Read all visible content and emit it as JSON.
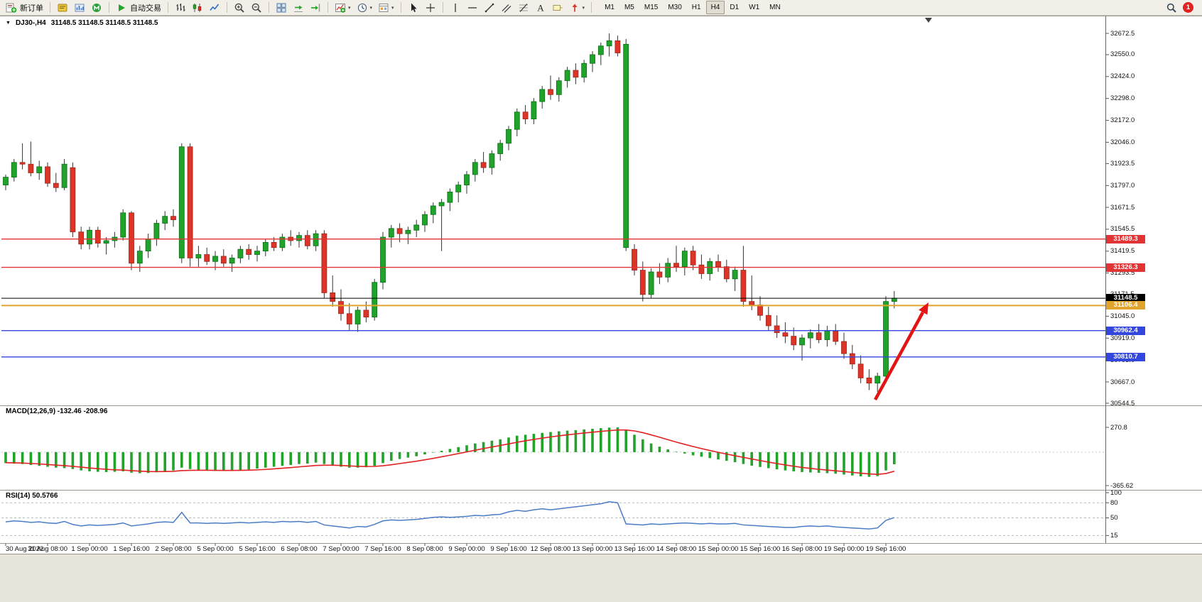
{
  "toolbar": {
    "new_order": "新订单",
    "auto_trading": "自动交易",
    "icon_groups": [
      [
        "new-order"
      ],
      [
        "metaeditor",
        "strategy-tester",
        "mql"
      ],
      [
        "autotrading"
      ],
      [
        "bar-chart",
        "candlestick-chart",
        "line-chart"
      ],
      [
        "zoom-in",
        "zoom-out"
      ],
      [
        "tile-windows",
        "auto-scroll",
        "chart-shift"
      ],
      [
        "indicators",
        "periods",
        "templates"
      ],
      [
        "cursor",
        "crosshair"
      ],
      [
        "vertical-line",
        "horizontal-line",
        "trendline",
        "channel",
        "fibonacci",
        "text",
        "text-label",
        "arrows"
      ]
    ],
    "timeframes": [
      "M1",
      "M5",
      "M15",
      "M30",
      "H1",
      "H4",
      "D1",
      "W1",
      "MN"
    ],
    "active_timeframe": "H4",
    "notification_count": "1"
  },
  "chart": {
    "symbol_title": "DJ30-,H4",
    "ohlc_title": "31148.5 31148.5 31148.5 31148.5",
    "macd_label": "MACD(12,26,9) -132.46 -208.96",
    "rsi_label": "RSI(14) 50.5766",
    "y_axis_labels": [
      "32672.5",
      "32550.0",
      "32424.0",
      "32298.0",
      "32172.0",
      "32046.0",
      "31923.5",
      "31797.0",
      "31671.5",
      "31545.5",
      "31419.5",
      "31293.5",
      "31171.5",
      "31045.0",
      "30919.0",
      "30793.0",
      "30667.0",
      "30544.5"
    ],
    "macd_axis_labels": [
      "270.8",
      "-365.62"
    ],
    "rsi_axis_labels": [
      "100",
      "80",
      "50",
      "15"
    ],
    "time_axis_labels": [
      "30 Aug 2022",
      "31 Aug 08:00",
      "1 Sep 00:00",
      "1 Sep 16:00",
      "2 Sep 08:00",
      "5 Sep 00:00",
      "5 Sep 16:00",
      "6 Sep 08:00",
      "7 Sep 00:00",
      "7 Sep 16:00",
      "8 Sep 08:00",
      "9 Sep 00:00",
      "9 Sep 16:00",
      "12 Sep 08:00",
      "13 Sep 00:00",
      "13 Sep 16:00",
      "14 Sep 08:00",
      "15 Sep 00:00",
      "15 Sep 16:00",
      "16 Sep 08:00",
      "19 Sep 00:00",
      "19 Sep 16:00"
    ],
    "price_lines": [
      {
        "label": "31489.3",
        "value": 31489.3,
        "color": "#e23434",
        "width": 1.4
      },
      {
        "label": "31326.3",
        "value": 31326.3,
        "color": "#e23434",
        "width": 1.4
      },
      {
        "label": "31148.5",
        "value": 31148.5,
        "color": "#000000",
        "width": 1
      },
      {
        "label": "31106.4",
        "value": 31106.4,
        "color": "#e0a42c",
        "width": 2
      },
      {
        "label": "30962.4",
        "value": 30962.4,
        "color": "#3347df",
        "width": 1.4
      },
      {
        "label": "30810.7",
        "value": 30810.7,
        "color": "#3347df",
        "width": 1.4
      }
    ],
    "colors": {
      "bull": "#1fa32b",
      "bull_border": "#0d6e15",
      "bear": "#de3427",
      "bear_border": "#97291e",
      "wick": "#333333",
      "macd_histogram": "#22a32a",
      "macd_signal": "#e02222",
      "rsi_line": "#4a7cc7",
      "annotation_arrow": "#e41414"
    }
  },
  "chart_data": {
    "type": "candlestick",
    "symbol": "DJ30-",
    "timeframe": "H4",
    "price_range": [
      30544.5,
      32672.5
    ],
    "candles_ohlc": [
      [
        31800,
        31860,
        31770,
        31845
      ],
      [
        31845,
        31950,
        31820,
        31930
      ],
      [
        31930,
        32040,
        31890,
        31920
      ],
      [
        31920,
        32050,
        31850,
        31870
      ],
      [
        31870,
        31940,
        31830,
        31905
      ],
      [
        31905,
        31930,
        31790,
        31810
      ],
      [
        31810,
        31870,
        31760,
        31785
      ],
      [
        31785,
        31950,
        31770,
        31920
      ],
      [
        31900,
        31930,
        31500,
        31530
      ],
      [
        31530,
        31560,
        31430,
        31460
      ],
      [
        31460,
        31560,
        31430,
        31540
      ],
      [
        31540,
        31560,
        31440,
        31465
      ],
      [
        31465,
        31500,
        31400,
        31480
      ],
      [
        31480,
        31530,
        31440,
        31500
      ],
      [
        31500,
        31660,
        31480,
        31640
      ],
      [
        31640,
        31650,
        31310,
        31350
      ],
      [
        31350,
        31450,
        31300,
        31420
      ],
      [
        31420,
        31520,
        31380,
        31490
      ],
      [
        31490,
        31600,
        31450,
        31580
      ],
      [
        31580,
        31650,
        31540,
        31620
      ],
      [
        31620,
        31660,
        31560,
        31600
      ],
      [
        31380,
        32040,
        31350,
        32020
      ],
      [
        32020,
        32040,
        31330,
        31380
      ],
      [
        31380,
        31450,
        31330,
        31400
      ],
      [
        31400,
        31440,
        31340,
        31360
      ],
      [
        31360,
        31420,
        31310,
        31390
      ],
      [
        31390,
        31430,
        31330,
        31350
      ],
      [
        31350,
        31400,
        31300,
        31380
      ],
      [
        31380,
        31450,
        31350,
        31430
      ],
      [
        31430,
        31460,
        31370,
        31400
      ],
      [
        31400,
        31450,
        31360,
        31420
      ],
      [
        31420,
        31490,
        31390,
        31470
      ],
      [
        31470,
        31500,
        31420,
        31440
      ],
      [
        31440,
        31520,
        31420,
        31500
      ],
      [
        31500,
        31540,
        31450,
        31480
      ],
      [
        31480,
        31530,
        31440,
        31510
      ],
      [
        31510,
        31540,
        31430,
        31450
      ],
      [
        31450,
        31540,
        31420,
        31520
      ],
      [
        31520,
        31540,
        31150,
        31180
      ],
      [
        31180,
        31280,
        31100,
        31130
      ],
      [
        31130,
        31200,
        31020,
        31060
      ],
      [
        31060,
        31120,
        30960,
        31000
      ],
      [
        31000,
        31100,
        30955,
        31080
      ],
      [
        31080,
        31130,
        31010,
        31040
      ],
      [
        31040,
        31260,
        31020,
        31240
      ],
      [
        31240,
        31530,
        31200,
        31500
      ],
      [
        31500,
        31570,
        31440,
        31550
      ],
      [
        31550,
        31580,
        31470,
        31520
      ],
      [
        31520,
        31560,
        31460,
        31540
      ],
      [
        31540,
        31600,
        31500,
        31570
      ],
      [
        31570,
        31650,
        31530,
        31630
      ],
      [
        31630,
        31700,
        31580,
        31680
      ],
      [
        31680,
        31720,
        31420,
        31700
      ],
      [
        31700,
        31780,
        31650,
        31760
      ],
      [
        31760,
        31820,
        31700,
        31800
      ],
      [
        31800,
        31880,
        31750,
        31860
      ],
      [
        31860,
        31950,
        31820,
        31930
      ],
      [
        31930,
        31990,
        31870,
        31900
      ],
      [
        31900,
        32000,
        31860,
        31980
      ],
      [
        31980,
        32060,
        31940,
        32040
      ],
      [
        32040,
        32140,
        32000,
        32120
      ],
      [
        32120,
        32240,
        32080,
        32220
      ],
      [
        32220,
        32260,
        32150,
        32180
      ],
      [
        32180,
        32300,
        32150,
        32280
      ],
      [
        32280,
        32370,
        32240,
        32350
      ],
      [
        32350,
        32430,
        32290,
        32320
      ],
      [
        32320,
        32420,
        32280,
        32400
      ],
      [
        32400,
        32480,
        32360,
        32460
      ],
      [
        32460,
        32500,
        32380,
        32420
      ],
      [
        32420,
        32520,
        32390,
        32500
      ],
      [
        32500,
        32570,
        32450,
        32550
      ],
      [
        32550,
        32620,
        32490,
        32600
      ],
      [
        32600,
        32672,
        32540,
        32630
      ],
      [
        32630,
        32660,
        32540,
        32560
      ],
      [
        31440,
        32640,
        31420,
        32610
      ],
      [
        31430,
        31460,
        31280,
        31310
      ],
      [
        31310,
        31360,
        31130,
        31170
      ],
      [
        31170,
        31320,
        31150,
        31300
      ],
      [
        31300,
        31350,
        31230,
        31270
      ],
      [
        31270,
        31380,
        31240,
        31350
      ],
      [
        31350,
        31450,
        31300,
        31330
      ],
      [
        31330,
        31440,
        31280,
        31420
      ],
      [
        31420,
        31450,
        31310,
        31340
      ],
      [
        31340,
        31400,
        31260,
        31290
      ],
      [
        31290,
        31380,
        31250,
        31360
      ],
      [
        31360,
        31400,
        31300,
        31330
      ],
      [
        31330,
        31370,
        31240,
        31260
      ],
      [
        31260,
        31330,
        31190,
        31310
      ],
      [
        31310,
        31450,
        31100,
        31130
      ],
      [
        31130,
        31280,
        31080,
        31110
      ],
      [
        31110,
        31160,
        31020,
        31050
      ],
      [
        31050,
        31100,
        30960,
        30990
      ],
      [
        30990,
        31050,
        30920,
        30950
      ],
      [
        30950,
        31010,
        30890,
        30930
      ],
      [
        30930,
        30980,
        30850,
        30880
      ],
      [
        30880,
        30940,
        30790,
        30920
      ],
      [
        30920,
        30970,
        30860,
        30950
      ],
      [
        30950,
        31000,
        30890,
        30910
      ],
      [
        30910,
        30990,
        30870,
        30960
      ],
      [
        30960,
        31000,
        30880,
        30900
      ],
      [
        30900,
        30950,
        30800,
        30830
      ],
      [
        30830,
        30880,
        30740,
        30770
      ],
      [
        30770,
        30820,
        30660,
        30690
      ],
      [
        30690,
        30740,
        30620,
        30660
      ],
      [
        30660,
        30720,
        30610,
        30700
      ],
      [
        30700,
        31160,
        30690,
        31130
      ],
      [
        31130,
        31190,
        31090,
        31148.5
      ]
    ],
    "indicators": {
      "macd": {
        "params": "12,26,9",
        "value": -132.46,
        "signal_value": -208.96,
        "range": [
          -365.62,
          270.8
        ],
        "macd_line": [
          -120,
          -125,
          -130,
          -140,
          -150,
          -160,
          -170,
          -175,
          -185,
          -200,
          -210,
          -215,
          -218,
          -215,
          -210,
          -225,
          -230,
          -228,
          -220,
          -210,
          -200,
          -170,
          -185,
          -195,
          -200,
          -205,
          -205,
          -200,
          -195,
          -190,
          -180,
          -170,
          -160,
          -150,
          -140,
          -130,
          -125,
          -115,
          -130,
          -145,
          -160,
          -170,
          -170,
          -165,
          -150,
          -120,
          -95,
          -75,
          -60,
          -45,
          -25,
          -5,
          15,
          35,
          55,
          75,
          95,
          110,
          125,
          140,
          160,
          180,
          190,
          200,
          210,
          220,
          228,
          235,
          240,
          248,
          255,
          262,
          268,
          270,
          240,
          190,
          140,
          95,
          60,
          30,
          5,
          -15,
          -35,
          -50,
          -65,
          -80,
          -95,
          -110,
          -130,
          -148,
          -162,
          -175,
          -188,
          -200,
          -210,
          -218,
          -222,
          -226,
          -230,
          -236,
          -245,
          -255,
          -265,
          -270,
          -262,
          -200,
          -132.46
        ],
        "signal_line": [
          -115,
          -117,
          -120,
          -124,
          -129,
          -135,
          -142,
          -148,
          -155,
          -164,
          -173,
          -181,
          -188,
          -193,
          -196,
          -202,
          -208,
          -212,
          -213,
          -212,
          -210,
          -202,
          -199,
          -198,
          -198,
          -199,
          -200,
          -200,
          -199,
          -197,
          -194,
          -189,
          -183,
          -176,
          -169,
          -161,
          -154,
          -146,
          -143,
          -143,
          -146,
          -151,
          -155,
          -157,
          -156,
          -149,
          -138,
          -125,
          -112,
          -99,
          -84,
          -68,
          -51,
          -34,
          -16,
          2,
          21,
          39,
          56,
          73,
          90,
          108,
          124,
          139,
          153,
          166,
          178,
          189,
          199,
          209,
          218,
          227,
          235,
          242,
          242,
          232,
          213,
          189,
          163,
          136,
          110,
          85,
          61,
          39,
          18,
          -2,
          -21,
          -39,
          -57,
          -75,
          -92,
          -109,
          -125,
          -140,
          -154,
          -167,
          -178,
          -188,
          -196,
          -204,
          -212,
          -221,
          -230,
          -238,
          -243,
          -234,
          -208.96
        ]
      },
      "rsi": {
        "params": "14",
        "value": 50.5766,
        "levels": [
          80,
          50,
          15
        ],
        "line": [
          42,
          44,
          43,
          41,
          42,
          40,
          39,
          43,
          37,
          34,
          36,
          35,
          36,
          37,
          40,
          34,
          36,
          38,
          41,
          42,
          41,
          61,
          40,
          40,
          39,
          40,
          39,
          40,
          41,
          40,
          41,
          42,
          41,
          43,
          42,
          43,
          41,
          43,
          36,
          34,
          32,
          30,
          33,
          32,
          37,
          44,
          46,
          45,
          46,
          47,
          49,
          51,
          52,
          51,
          52,
          53,
          55,
          54,
          56,
          57,
          62,
          65,
          63,
          66,
          68,
          66,
          68,
          70,
          72,
          74,
          76,
          78,
          82,
          80,
          38,
          37,
          36,
          38,
          37,
          38,
          39,
          40,
          39,
          38,
          39,
          38,
          38,
          39,
          36,
          35,
          34,
          33,
          32,
          31,
          31,
          33,
          34,
          33,
          34,
          32,
          31,
          30,
          29,
          28,
          30,
          45,
          50.58
        ]
      }
    },
    "annotations": [
      {
        "type": "arrow",
        "direction": "up",
        "color": "#e41414",
        "from_price": 30600,
        "to_price": 31200,
        "note": "bullish projection arrow"
      }
    ]
  }
}
